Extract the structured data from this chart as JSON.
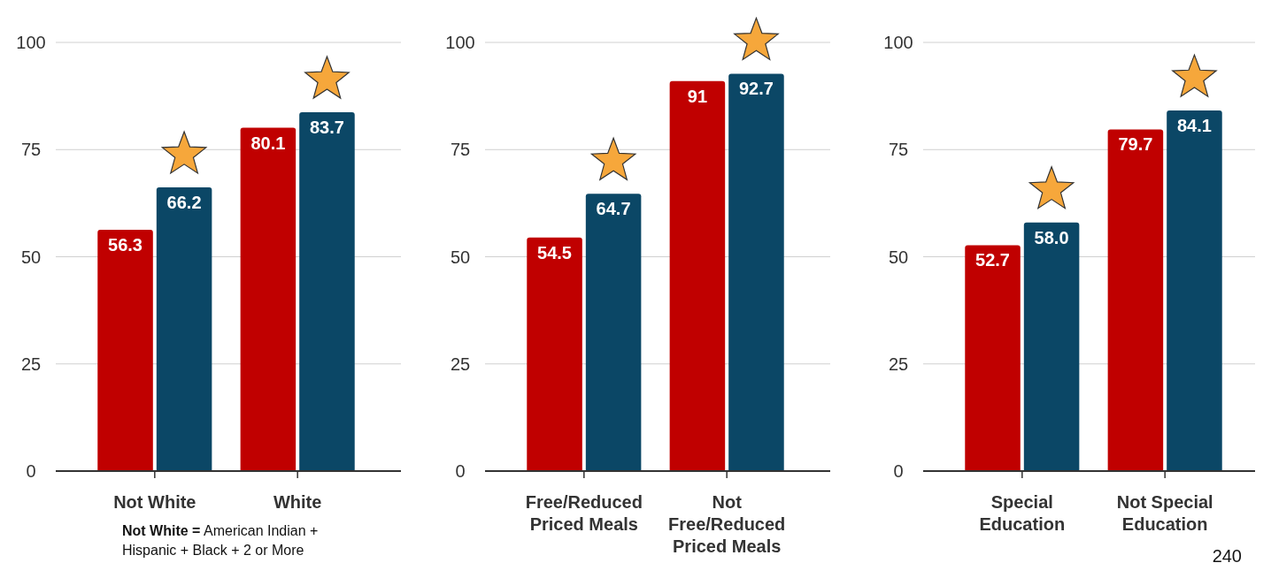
{
  "chart_data": [
    {
      "type": "bar",
      "categories": [
        "Not White",
        "White"
      ],
      "series": [
        {
          "color": "#c00000",
          "values": [
            56.3,
            80.1
          ],
          "value_labels": [
            "56.3",
            "80.1"
          ]
        },
        {
          "color": "#0b4766",
          "values": [
            66.2,
            83.7
          ],
          "value_labels": [
            "66.2",
            "83.7"
          ]
        }
      ],
      "ylim": [
        0,
        100
      ],
      "yticks": [
        0,
        25,
        50,
        75,
        100
      ],
      "grid": "y",
      "annotations": [
        "Not White = American Indian + Hispanic + Black + 2 or More"
      ]
    },
    {
      "type": "bar",
      "categories": [
        "Free/Reduced Priced Meals",
        "Not Free/Reduced Priced Meals"
      ],
      "series": [
        {
          "color": "#c00000",
          "values": [
            54.5,
            91
          ],
          "value_labels": [
            "54.5",
            "91"
          ]
        },
        {
          "color": "#0b4766",
          "values": [
            64.7,
            92.7
          ],
          "value_labels": [
            "64.7",
            "92.7"
          ]
        }
      ],
      "ylim": [
        0,
        100
      ],
      "yticks": [
        0,
        25,
        50,
        75,
        100
      ],
      "grid": "y"
    },
    {
      "type": "bar",
      "categories": [
        "Special Education",
        "Not Special Education"
      ],
      "series": [
        {
          "color": "#c00000",
          "values": [
            52.7,
            79.7
          ],
          "value_labels": [
            "52.7",
            "79.7"
          ]
        },
        {
          "color": "#0b4766",
          "values": [
            58.0,
            84.1
          ],
          "value_labels": [
            "58.0",
            "84.1"
          ]
        }
      ],
      "ylim": [
        0,
        100
      ],
      "yticks": [
        0,
        25,
        50,
        75,
        100
      ],
      "grid": "y",
      "annotations": [
        "240"
      ]
    }
  ]
}
